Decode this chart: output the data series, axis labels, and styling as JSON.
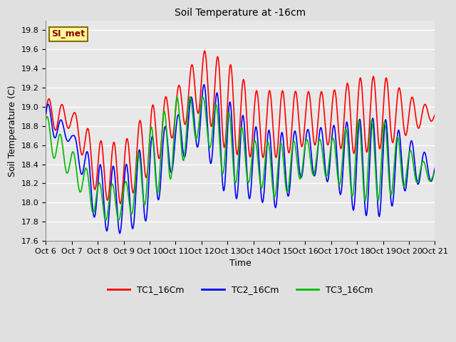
{
  "title": "Soil Temperature at -16cm",
  "xlabel": "Time",
  "ylabel": "Soil Temperature (C)",
  "ylim": [
    17.6,
    19.9
  ],
  "xlim": [
    0,
    360
  ],
  "fig_bg": "#e0e0e0",
  "plot_bg": "#e8e8e8",
  "grid_color": "#ffffff",
  "annotation_text": "SI_met",
  "annotation_bg": "#ffff99",
  "annotation_border": "#8b6914",
  "annotation_text_color": "#8b0000",
  "legend_entries": [
    "TC1_16Cm",
    "TC2_16Cm",
    "TC3_16Cm"
  ],
  "colors": [
    "#ff0000",
    "#0000ff",
    "#00bb00"
  ],
  "tick_labels": [
    "Oct 6",
    "Oct 7",
    "Oct 8",
    "Oct 9",
    "Oct 10",
    "Oct 11",
    "Oct 12",
    "Oct 13",
    "Oct 14",
    "Oct 15",
    "Oct 16",
    "Oct 17",
    "Oct 18",
    "Oct 19",
    "Oct 20",
    "Oct 21"
  ],
  "tick_positions": [
    0,
    24,
    48,
    72,
    96,
    120,
    144,
    168,
    192,
    216,
    240,
    264,
    288,
    312,
    336,
    360
  ],
  "yticks": [
    17.6,
    17.8,
    18.0,
    18.2,
    18.4,
    18.6,
    18.8,
    19.0,
    19.2,
    19.4,
    19.6,
    19.8
  ],
  "linewidth": 1.2,
  "title_fontsize": 10,
  "axis_fontsize": 9,
  "tick_fontsize": 8,
  "legend_fontsize": 9
}
